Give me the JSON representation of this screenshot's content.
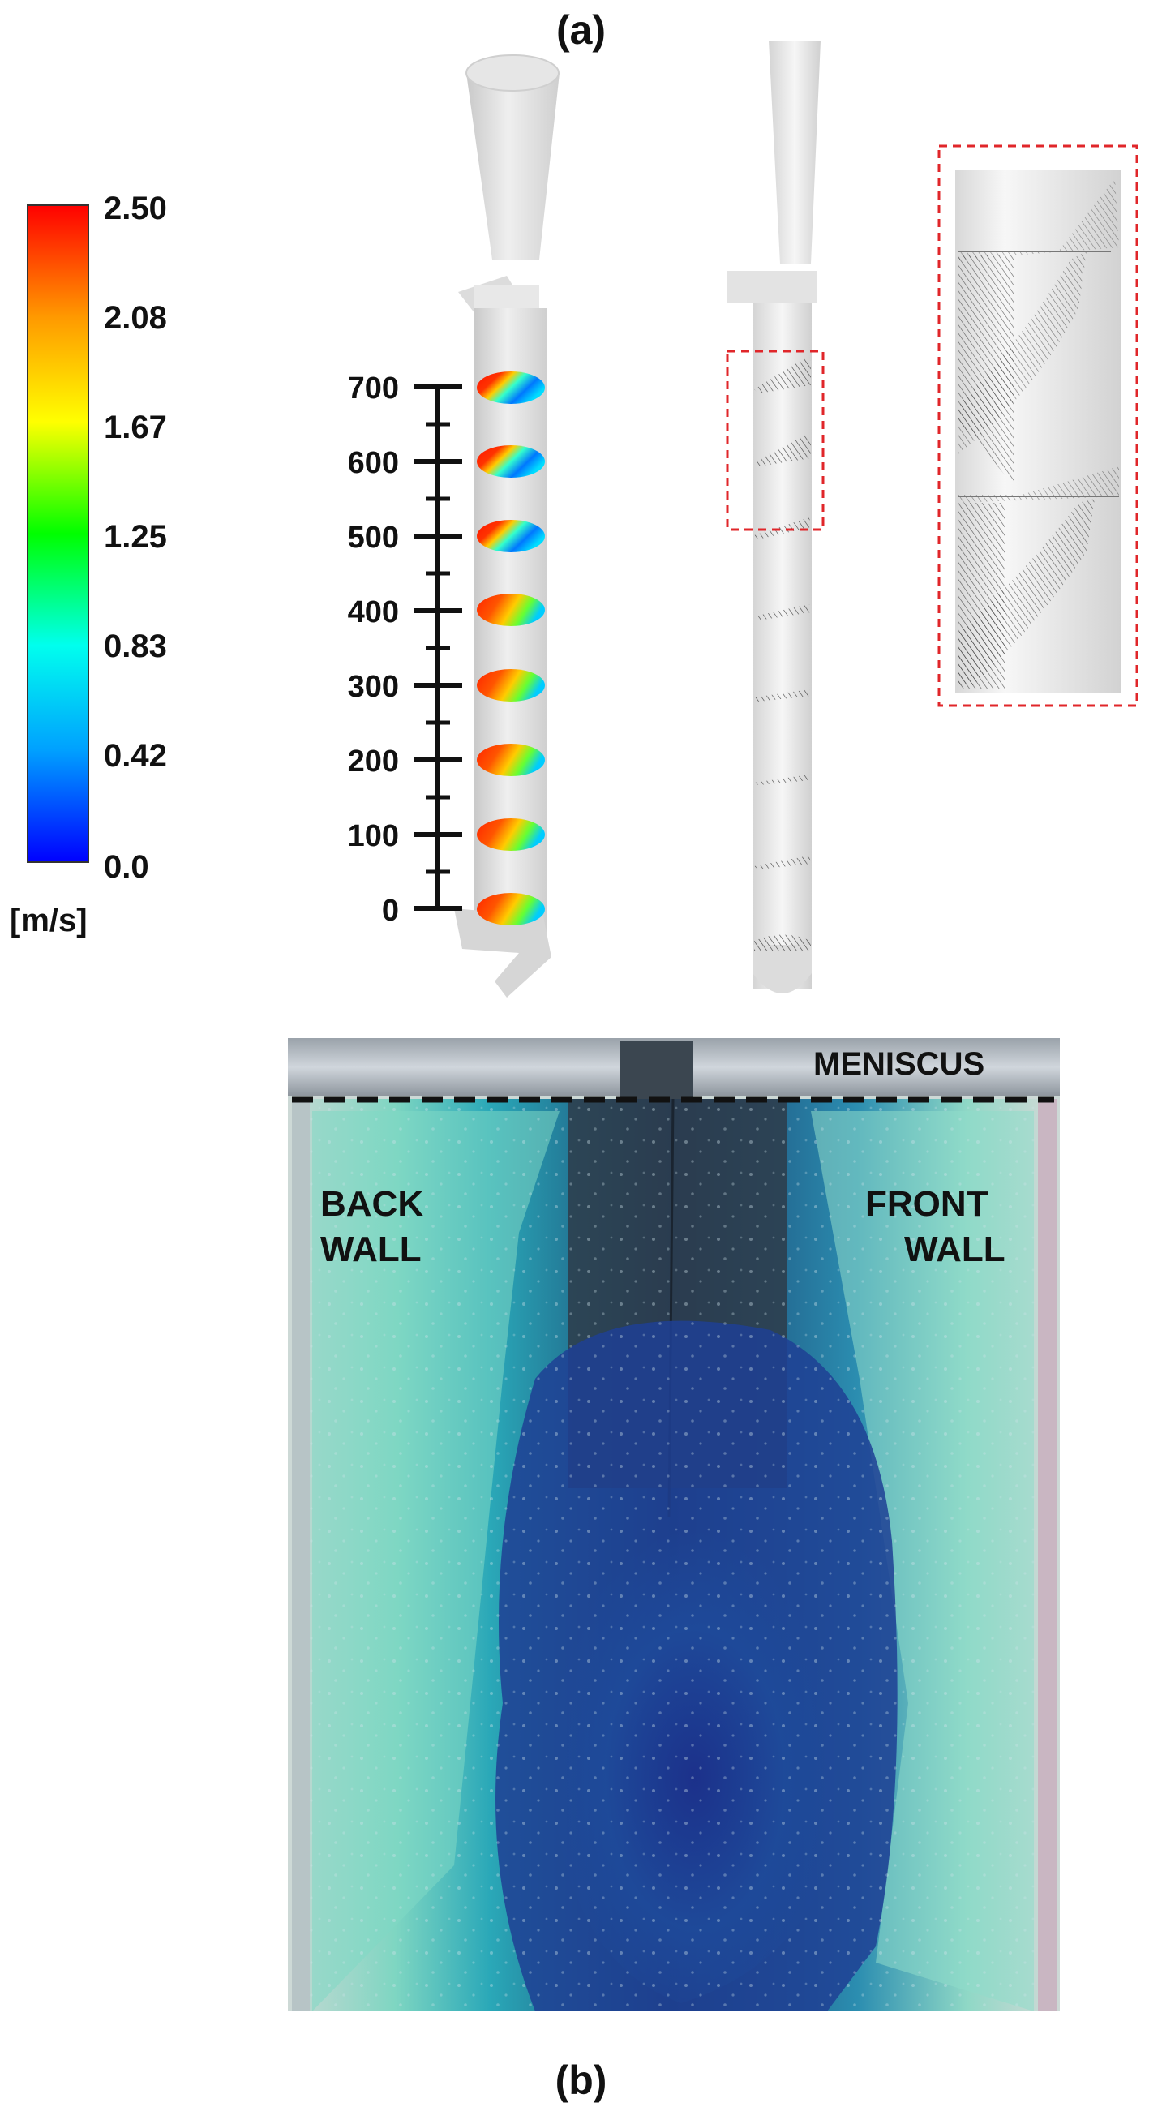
{
  "panel_a_label": "(a)",
  "panel_b_label": "(b)",
  "colorbar": {
    "ticks": [
      "2.50",
      "2.08",
      "1.67",
      "1.25",
      "0.83",
      "0.42",
      "0.0"
    ],
    "unit": "[m/s]",
    "colors": [
      "#0000ff",
      "#00a0ff",
      "#00ffee",
      "#00ff00",
      "#ffff00",
      "#ff9900",
      "#ff0000"
    ]
  },
  "height_axis": {
    "ticks": [
      "700",
      "600",
      "500",
      "400",
      "300",
      "200",
      "100",
      "0"
    ]
  },
  "photo_labels": {
    "meniscus": "MENISCUS",
    "back_wall_line1": "BACK",
    "back_wall_line2": "WALL",
    "front_wall_line1": "FRONT",
    "front_wall_line2": "WALL"
  }
}
